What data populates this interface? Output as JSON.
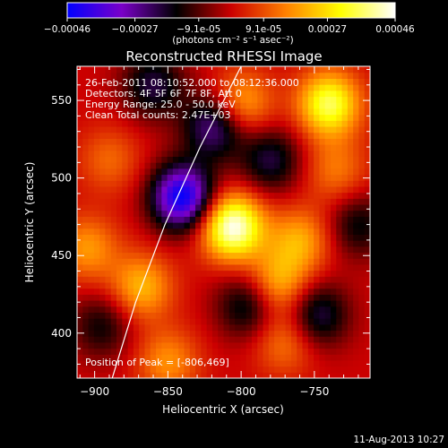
{
  "chart_data": {
    "type": "heatmap",
    "title": "Reconstructed RHESSI Image",
    "xlabel": "Heliocentric X (arcsec)",
    "ylabel": "Heliocentric Y (arcsec)",
    "xlim": [
      -912,
      -712
    ],
    "ylim": [
      371,
      572
    ],
    "x_ticks": [
      -900,
      -850,
      -800,
      -750
    ],
    "x_tick_labels": [
      "−900",
      "−850",
      "−800",
      "−750"
    ],
    "y_ticks": [
      400,
      450,
      500,
      550
    ],
    "y_tick_labels": [
      "400",
      "450",
      "500",
      "550"
    ],
    "colorbar": {
      "ticks": [
        -0.00046,
        -0.00027,
        -9.1e-05,
        9.1e-05,
        0.00027,
        0.00046
      ],
      "tick_labels": [
        "−0.00046",
        "−0.00027",
        "−9.1e-05",
        "9.1e-05",
        "0.00027",
        "0.00046"
      ],
      "units_label": "(photons cm⁻² s⁻¹ asec⁻²)",
      "colormap": [
        "#0000ff",
        "#7a00c8",
        "#000000",
        "#cc0000",
        "#ff8000",
        "#ffff00",
        "#ffffff"
      ]
    },
    "info_lines": [
      "26-Feb-2011 08:10:52.000  to  08:12:36.000",
      "Detectors: 4F 5F 6F 7F 8F, Att 0",
      "Energy Range: 25.0 - 50.0 keV",
      "Clean     Total counts: 2.47E+03"
    ],
    "peak_label": "Position of Peak = [-806,469]",
    "peak": [
      -806,
      469
    ],
    "sources": [
      {
        "x": -806,
        "y": 469,
        "value": 0.00046
      },
      {
        "x": -740,
        "y": 548,
        "value": 0.00036
      },
      {
        "x": -800,
        "y": 548,
        "value": 0.00022
      },
      {
        "x": -760,
        "y": 460,
        "value": 0.0002
      },
      {
        "x": -775,
        "y": 432,
        "value": 0.00022
      },
      {
        "x": -868,
        "y": 430,
        "value": 0.00022
      },
      {
        "x": -905,
        "y": 455,
        "value": 0.00018
      },
      {
        "x": -770,
        "y": 395,
        "value": 0.00015
      },
      {
        "x": -850,
        "y": 382,
        "value": 0.00017
      },
      {
        "x": -890,
        "y": 512,
        "value": 0.00012
      },
      {
        "x": -735,
        "y": 505,
        "value": 0.00014
      },
      {
        "x": -840,
        "y": 488,
        "value": -0.00046
      },
      {
        "x": -818,
        "y": 534,
        "value": -0.00028
      },
      {
        "x": -780,
        "y": 512,
        "value": -0.0002
      },
      {
        "x": -860,
        "y": 560,
        "value": -0.0002
      },
      {
        "x": -795,
        "y": 418,
        "value": -0.0002
      },
      {
        "x": -748,
        "y": 412,
        "value": -0.00022
      },
      {
        "x": -895,
        "y": 405,
        "value": -0.00015
      },
      {
        "x": -720,
        "y": 470,
        "value": -0.00016
      }
    ],
    "limb_curve": [
      [
        -888,
        371
      ],
      [
        -872,
        420
      ],
      [
        -852,
        470
      ],
      [
        -828,
        520
      ],
      [
        -800,
        572
      ]
    ]
  },
  "footer_date": "11-Aug-2013 10:27"
}
